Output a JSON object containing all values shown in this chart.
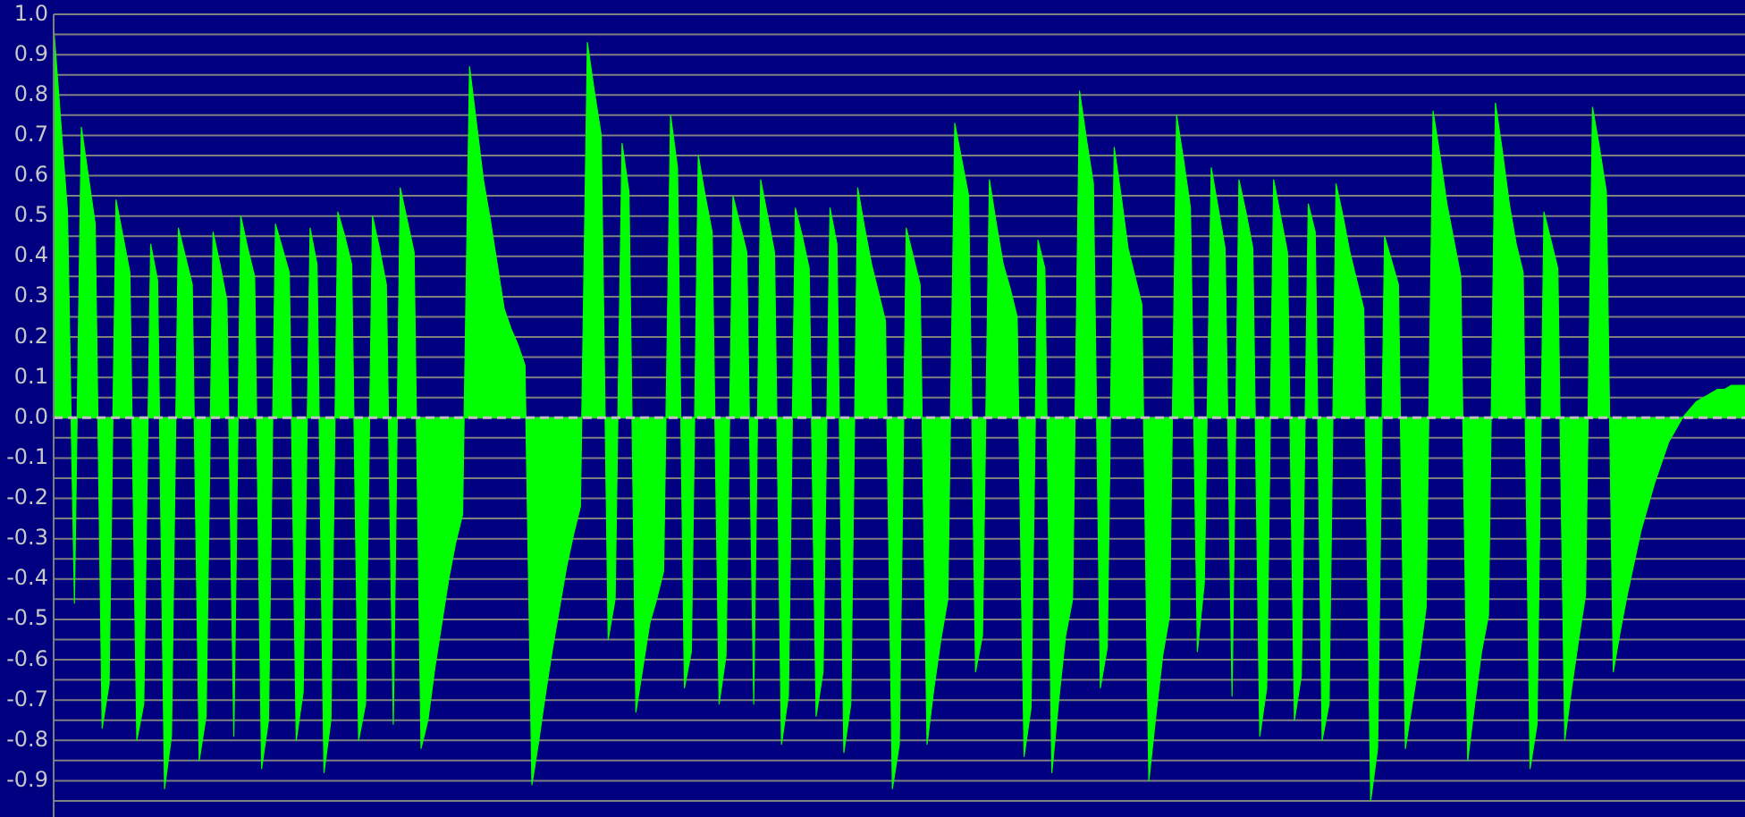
{
  "chart_data": {
    "type": "area",
    "categories": [
      null,
      null,
      null,
      null,
      null,
      null,
      null,
      null,
      null,
      null,
      null,
      null,
      null,
      null,
      null,
      null,
      null,
      null,
      null,
      null,
      null,
      null,
      null,
      null,
      null,
      null,
      null,
      null,
      null,
      null,
      null,
      null,
      null,
      null,
      null,
      null,
      null,
      null,
      null,
      null,
      null,
      null,
      null,
      null,
      null,
      null,
      null,
      null,
      null,
      null,
      null,
      null,
      null,
      null,
      null,
      null,
      null,
      null,
      null,
      null,
      null,
      null,
      null,
      null,
      null,
      null,
      null,
      null,
      null,
      null,
      null,
      null,
      null,
      null,
      null,
      null,
      null,
      null,
      null,
      null,
      null,
      null,
      null,
      null,
      null,
      null,
      null,
      null,
      null,
      null,
      null,
      null,
      null,
      null,
      null,
      null,
      null,
      null,
      null,
      null,
      null,
      null,
      null,
      null,
      null,
      null,
      null,
      null,
      null,
      null,
      null,
      null,
      null,
      null,
      null,
      null,
      null,
      null,
      null,
      null,
      null,
      null,
      null,
      null,
      null,
      null,
      null,
      null,
      null,
      null,
      null,
      null,
      null,
      null,
      null,
      null,
      null,
      null,
      null,
      null,
      null,
      null,
      null,
      null,
      null,
      null,
      null,
      null,
      null,
      null,
      null,
      null,
      null,
      null,
      null,
      null,
      null,
      null,
      null,
      null,
      null,
      null,
      null,
      null,
      null,
      null,
      null,
      null,
      null,
      null,
      null,
      null,
      null,
      null,
      null,
      null,
      null,
      null,
      null,
      null,
      null,
      null,
      null,
      null,
      null,
      null,
      null,
      null,
      null,
      null,
      null,
      null,
      null,
      null,
      null,
      null,
      null,
      null,
      null,
      null,
      null,
      null,
      null,
      null,
      null,
      null,
      null,
      null,
      null,
      null,
      null,
      null,
      null,
      null,
      null,
      null,
      null,
      null,
      null,
      null,
      null,
      null,
      null,
      null,
      null,
      null,
      null,
      null,
      null,
      null,
      null,
      null,
      null,
      null,
      null,
      null,
      null,
      null,
      null,
      null,
      null,
      null,
      null,
      null,
      null
    ],
    "series": [
      {
        "color": "#00ff00",
        "values": [
          0.97,
          0.74,
          0.51,
          -0.46,
          0.72,
          0.6,
          0.48,
          -0.77,
          -0.66,
          0.54,
          0.45,
          0.36,
          -0.8,
          -0.71,
          0.43,
          0.34,
          -0.92,
          -0.79,
          0.47,
          0.4,
          0.33,
          -0.85,
          -0.74,
          0.46,
          0.38,
          0.29,
          -0.79,
          0.5,
          0.42,
          0.35,
          -0.87,
          -0.75,
          0.48,
          0.42,
          0.36,
          -0.8,
          -0.68,
          0.47,
          0.38,
          -0.88,
          -0.75,
          0.51,
          0.45,
          0.38,
          -0.8,
          -0.71,
          0.5,
          0.42,
          0.33,
          -0.76,
          0.57,
          0.49,
          0.41,
          -0.82,
          -0.75,
          -0.62,
          -0.51,
          -0.4,
          -0.31,
          -0.24,
          0.87,
          0.73,
          0.59,
          0.49,
          0.38,
          0.27,
          0.22,
          0.18,
          0.13,
          -0.91,
          -0.8,
          -0.68,
          -0.57,
          -0.47,
          -0.37,
          -0.29,
          -0.22,
          0.93,
          0.81,
          0.7,
          -0.55,
          -0.45,
          0.68,
          0.56,
          -0.73,
          -0.62,
          -0.51,
          -0.45,
          -0.38,
          0.75,
          0.62,
          -0.67,
          -0.58,
          0.65,
          0.55,
          0.46,
          -0.71,
          -0.59,
          0.55,
          0.48,
          0.41,
          -0.71,
          0.59,
          0.5,
          0.41,
          -0.81,
          -0.69,
          0.52,
          0.45,
          0.37,
          -0.74,
          -0.63,
          0.52,
          0.43,
          -0.83,
          -0.71,
          0.57,
          0.47,
          0.38,
          0.31,
          0.24,
          -0.92,
          -0.81,
          0.47,
          0.4,
          0.33,
          -0.81,
          -0.67,
          -0.55,
          -0.45,
          0.73,
          0.64,
          0.55,
          -0.63,
          -0.54,
          0.59,
          0.48,
          0.38,
          0.32,
          0.25,
          -0.84,
          -0.72,
          0.44,
          0.37,
          -0.88,
          -0.7,
          -0.54,
          -0.45,
          0.81,
          0.69,
          0.58,
          -0.67,
          -0.57,
          0.67,
          0.55,
          0.42,
          0.35,
          0.28,
          -0.9,
          -0.74,
          -0.59,
          -0.49,
          0.75,
          0.64,
          0.52,
          -0.58,
          -0.41,
          0.62,
          0.52,
          0.42,
          -0.69,
          0.59,
          0.51,
          0.42,
          -0.79,
          -0.67,
          0.59,
          0.5,
          0.41,
          -0.75,
          -0.64,
          0.53,
          0.46,
          -0.8,
          -0.71,
          0.58,
          0.5,
          0.41,
          0.34,
          0.27,
          -0.95,
          -0.82,
          0.45,
          0.39,
          0.33,
          -0.82,
          -0.71,
          -0.6,
          -0.47,
          0.76,
          0.65,
          0.53,
          0.44,
          0.35,
          -0.85,
          -0.71,
          -0.58,
          -0.49,
          0.78,
          0.66,
          0.53,
          0.43,
          0.36,
          -0.87,
          -0.76,
          0.51,
          0.44,
          0.37,
          -0.8,
          -0.67,
          -0.55,
          -0.44,
          0.77,
          0.67,
          0.56,
          -0.63,
          -0.53,
          -0.44,
          -0.36,
          -0.28,
          -0.22,
          -0.16,
          -0.11,
          -0.06,
          -0.03,
          0.0,
          0.02,
          0.04,
          0.05,
          0.06,
          0.07,
          0.07,
          0.08,
          0.08,
          0.08
        ]
      }
    ],
    "ylim": [
      -0.99,
      1.0
    ],
    "yticks": [
      {
        "value": -0.95,
        "label": null
      },
      -0.9,
      {
        "value": -0.85,
        "label": null
      },
      -0.8,
      {
        "value": -0.75,
        "label": null
      },
      -0.7,
      {
        "value": -0.65,
        "label": null
      },
      -0.6,
      {
        "value": -0.55,
        "label": null
      },
      -0.5,
      {
        "value": -0.45,
        "label": null
      },
      -0.4,
      {
        "value": -0.35,
        "label": null
      },
      -0.3,
      {
        "value": -0.25,
        "label": null
      },
      -0.2,
      {
        "value": -0.15,
        "label": null
      },
      -0.1,
      {
        "value": -0.05,
        "label": null
      },
      {
        "value": 0,
        "label": "0.0"
      },
      {
        "value": 0.05,
        "label": null
      },
      0.1,
      {
        "value": 0.15,
        "label": null
      },
      0.2,
      {
        "value": 0.25,
        "label": null
      },
      0.3,
      {
        "value": 0.35,
        "label": null
      },
      0.4,
      {
        "value": 0.45,
        "label": null
      },
      0.5,
      {
        "value": 0.55,
        "label": null
      },
      0.6,
      {
        "value": 0.65,
        "label": null
      },
      0.7,
      {
        "value": 0.75,
        "label": null
      },
      0.8,
      {
        "value": 0.85,
        "label": null
      },
      0.9,
      {
        "value": 0.95,
        "label": null
      },
      {
        "value": 1,
        "label": "1.0"
      }
    ],
    "grid": "y",
    "ref_lines": [
      {
        "axis": "y",
        "value": 0,
        "color": "#c0c0c0",
        "line_style": "dashed"
      }
    ]
  }
}
